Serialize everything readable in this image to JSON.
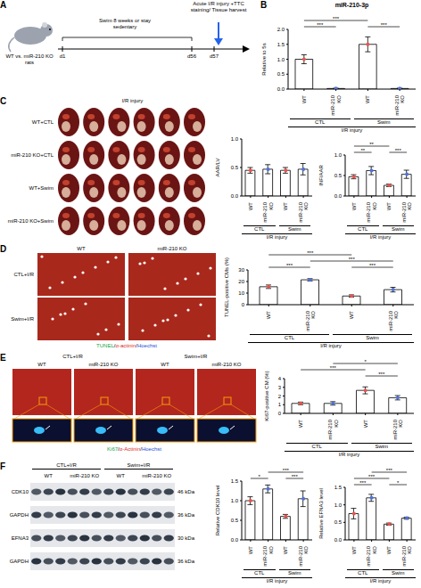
{
  "panels": {
    "A": {
      "letter": "A",
      "subject": "WT vs. miR-210 KO rats",
      "treatment": "Swim 8 weeks or stay sedentary",
      "endpoint": "Acute I/R injury +TTC staining/ Tissue harvest",
      "days": [
        "d1",
        "d56",
        "d57"
      ]
    },
    "C_images": {
      "letter": "C",
      "header": "I/R injury",
      "rows": [
        "WT+CTL",
        "miR-210 KO+CTL",
        "WT+Swim",
        "miR-210 KO+Swim"
      ]
    },
    "D_images": {
      "letter": "D",
      "columns": [
        "WT",
        "miR-210 KO"
      ],
      "rows": [
        "CTL+I/R",
        "Swim+I/R"
      ],
      "stain": [
        {
          "text": "TUNEL",
          "color": "#16a34a"
        },
        {
          "text": "/",
          "color": "#000000"
        },
        {
          "text": "α-actinin",
          "color": "#dc2626"
        },
        {
          "text": "/",
          "color": "#000000"
        },
        {
          "text": "Hoechst",
          "color": "#1d4ed8"
        }
      ]
    },
    "E_images": {
      "letter": "E",
      "conditions": [
        "CTL+I/R",
        "Swim+I/R"
      ],
      "genotypes": [
        "WT",
        "miR-210 KO"
      ],
      "stain": [
        {
          "text": "Ki67",
          "color": "#16a34a"
        },
        {
          "text": "/",
          "color": "#000000"
        },
        {
          "text": "α-Actinin",
          "color": "#dc2626"
        },
        {
          "text": "/",
          "color": "#000000"
        },
        {
          "text": "Hoechst",
          "color": "#1d4ed8"
        }
      ]
    },
    "F_blot": {
      "letter": "F",
      "conditions": [
        "CTL+I/R",
        "Swim+I/R"
      ],
      "genotypes": [
        "WT",
        "miR-210 KO"
      ],
      "rows": [
        {
          "protein": "CDK10",
          "size": "46 kDa"
        },
        {
          "protein": "GAPDH",
          "size": "36 kDa"
        },
        {
          "protein": "EFNA3",
          "size": "30 kDa"
        },
        {
          "protein": "GAPDH",
          "size": "36 kDa"
        }
      ]
    }
  },
  "chart_data": [
    {
      "letter": "B",
      "type": "bar",
      "title": "miR-210-3p",
      "y_label": "Relative to 5s",
      "x_label": "I/R injury",
      "groups": [
        "CTL",
        "Swim"
      ],
      "categories": [
        "WT",
        "miR-210 KO",
        "WT",
        "miR-210 KO"
      ],
      "values": [
        1.0,
        0.02,
        1.5,
        0.02
      ],
      "errors": [
        0.15,
        0.01,
        0.25,
        0.01
      ],
      "colors": [
        "#e8534f",
        "#4f72d9",
        "#e8534f",
        "#4f72d9"
      ],
      "ylim": [
        0,
        2
      ],
      "yticks": [
        {
          "value": 0,
          "label": "0.0"
        },
        0.5,
        {
          "value": 1,
          "label": "1.0"
        },
        1.5,
        {
          "value": 2,
          "label": "2.0"
        }
      ],
      "significance": [
        {
          "from": 0,
          "to": 1,
          "label": "***"
        },
        {
          "from": 2,
          "to": 3,
          "label": "***"
        },
        {
          "from": 0,
          "to": 2,
          "label": "***"
        }
      ]
    },
    {
      "type": "bar",
      "y_label": "AAR/LV",
      "x_label": "I/R injury",
      "groups": [
        "CTL",
        "Swim"
      ],
      "categories": [
        "WT",
        "miR-210 KO",
        "WT",
        "miR-210 KO"
      ],
      "values": [
        0.45,
        0.47,
        0.45,
        0.47
      ],
      "errors": [
        0.05,
        0.08,
        0.05,
        0.1
      ],
      "colors": [
        "#e8534f",
        "#4f72d9",
        "#e8534f",
        "#4f72d9"
      ],
      "ylim": [
        0,
        1
      ],
      "yticks": [
        {
          "value": 0,
          "label": "0.0"
        },
        0.5,
        {
          "value": 1,
          "label": "1.0"
        }
      ],
      "significance": []
    },
    {
      "type": "bar",
      "y_label": "INF/AAR",
      "x_label": "I/R injury",
      "groups": [
        "CTL",
        "Swim"
      ],
      "categories": [
        "WT",
        "miR-210 KO",
        "WT",
        "miR-210 KO"
      ],
      "values": [
        0.47,
        0.62,
        0.26,
        0.53
      ],
      "errors": [
        0.05,
        0.1,
        0.03,
        0.1
      ],
      "colors": [
        "#e8534f",
        "#4f72d9",
        "#e8534f",
        "#4f72d9"
      ],
      "ylim": [
        0,
        1
      ],
      "yticks": [
        {
          "value": 0,
          "label": "0.0"
        },
        0.5,
        {
          "value": 1,
          "label": "1.0"
        }
      ],
      "significance": [
        {
          "from": 0,
          "to": 1,
          "label": "**"
        },
        {
          "from": 2,
          "to": 3,
          "label": "***"
        },
        {
          "from": 0,
          "to": 2,
          "label": "**"
        }
      ]
    },
    {
      "type": "bar",
      "y_label": "TUNEL-positive CMs (%)",
      "x_label": "I/R injury",
      "groups": [
        "CTL",
        "Swim"
      ],
      "categories": [
        "WT",
        "miR-210 KO",
        "WT",
        "miR-210 KO"
      ],
      "values": [
        15.5,
        21.5,
        7.5,
        13
      ],
      "errors": [
        1.5,
        1,
        1,
        2
      ],
      "colors": [
        "#e8534f",
        "#4f72d9",
        "#e8534f",
        "#4f72d9"
      ],
      "ylim": [
        0,
        30
      ],
      "yticks": [
        0,
        10,
        20,
        30
      ],
      "significance": [
        {
          "from": 0,
          "to": 1,
          "label": "***"
        },
        {
          "from": 2,
          "to": 3,
          "label": "***"
        },
        {
          "from": 1,
          "to": 3,
          "label": "***"
        },
        {
          "from": 0,
          "to": 2,
          "label": "***"
        }
      ]
    },
    {
      "type": "bar",
      "y_label": "Ki67-positive CM (%)",
      "x_label": "I/R injury",
      "groups": [
        "CTL",
        "Swim"
      ],
      "categories": [
        "WT",
        "miR-210 KO",
        "WT",
        "miR-210 KO"
      ],
      "values": [
        1.15,
        1.15,
        2.65,
        1.8
      ],
      "errors": [
        0.15,
        0.2,
        0.4,
        0.25
      ],
      "colors": [
        "#e8534f",
        "#4f72d9",
        "#e8534f",
        "#4f72d9"
      ],
      "ylim": [
        0,
        4
      ],
      "yticks": [
        0,
        1,
        2,
        3,
        4
      ],
      "significance": [
        {
          "from": 2,
          "to": 3,
          "label": "***"
        },
        {
          "from": 0,
          "to": 2,
          "label": "***"
        },
        {
          "from": 1,
          "to": 3,
          "label": "*"
        }
      ]
    },
    {
      "type": "bar",
      "y_label": "Relative CDK10 level",
      "x_label": "I/R injury",
      "groups": [
        "CTL",
        "Swim"
      ],
      "categories": [
        "WT",
        "miR-210 KO",
        "WT",
        "miR-210 KO"
      ],
      "values": [
        1.0,
        1.3,
        0.6,
        1.05
      ],
      "errors": [
        0.1,
        0.1,
        0.05,
        0.2
      ],
      "colors": [
        "#e8534f",
        "#4f72d9",
        "#e8534f",
        "#4f72d9"
      ],
      "ylim": [
        0,
        1.5
      ],
      "yticks": [
        {
          "value": 0,
          "label": "0.0"
        },
        0.5,
        {
          "value": 1,
          "label": "1.0"
        },
        1.5
      ],
      "significance": [
        {
          "from": 0,
          "to": 1,
          "label": "*"
        },
        {
          "from": 2,
          "to": 3,
          "label": "***"
        },
        {
          "from": 1,
          "to": 3,
          "label": "***"
        }
      ]
    },
    {
      "type": "bar",
      "y_label": "Relative EFNA3 level",
      "x_label": "I/R injury",
      "groups": [
        "CTL",
        "Swim"
      ],
      "categories": [
        "WT",
        "miR-210 KO",
        "WT",
        "miR-210 KO"
      ],
      "values": [
        0.75,
        1.2,
        0.45,
        0.62
      ],
      "errors": [
        0.15,
        0.1,
        0.03,
        0.03
      ],
      "colors": [
        "#e8534f",
        "#4f72d9",
        "#e8534f",
        "#4f72d9"
      ],
      "ylim": [
        0,
        1.5
      ],
      "yticks": [
        {
          "value": 0,
          "label": "0.0"
        },
        0.5,
        {
          "value": 1,
          "label": "1.0"
        },
        1.5
      ],
      "significance": [
        {
          "from": 0,
          "to": 1,
          "label": "***"
        },
        {
          "from": 2,
          "to": 3,
          "label": "*"
        },
        {
          "from": 0,
          "to": 2,
          "label": "***"
        },
        {
          "from": 1,
          "to": 3,
          "label": "***"
        }
      ]
    }
  ]
}
